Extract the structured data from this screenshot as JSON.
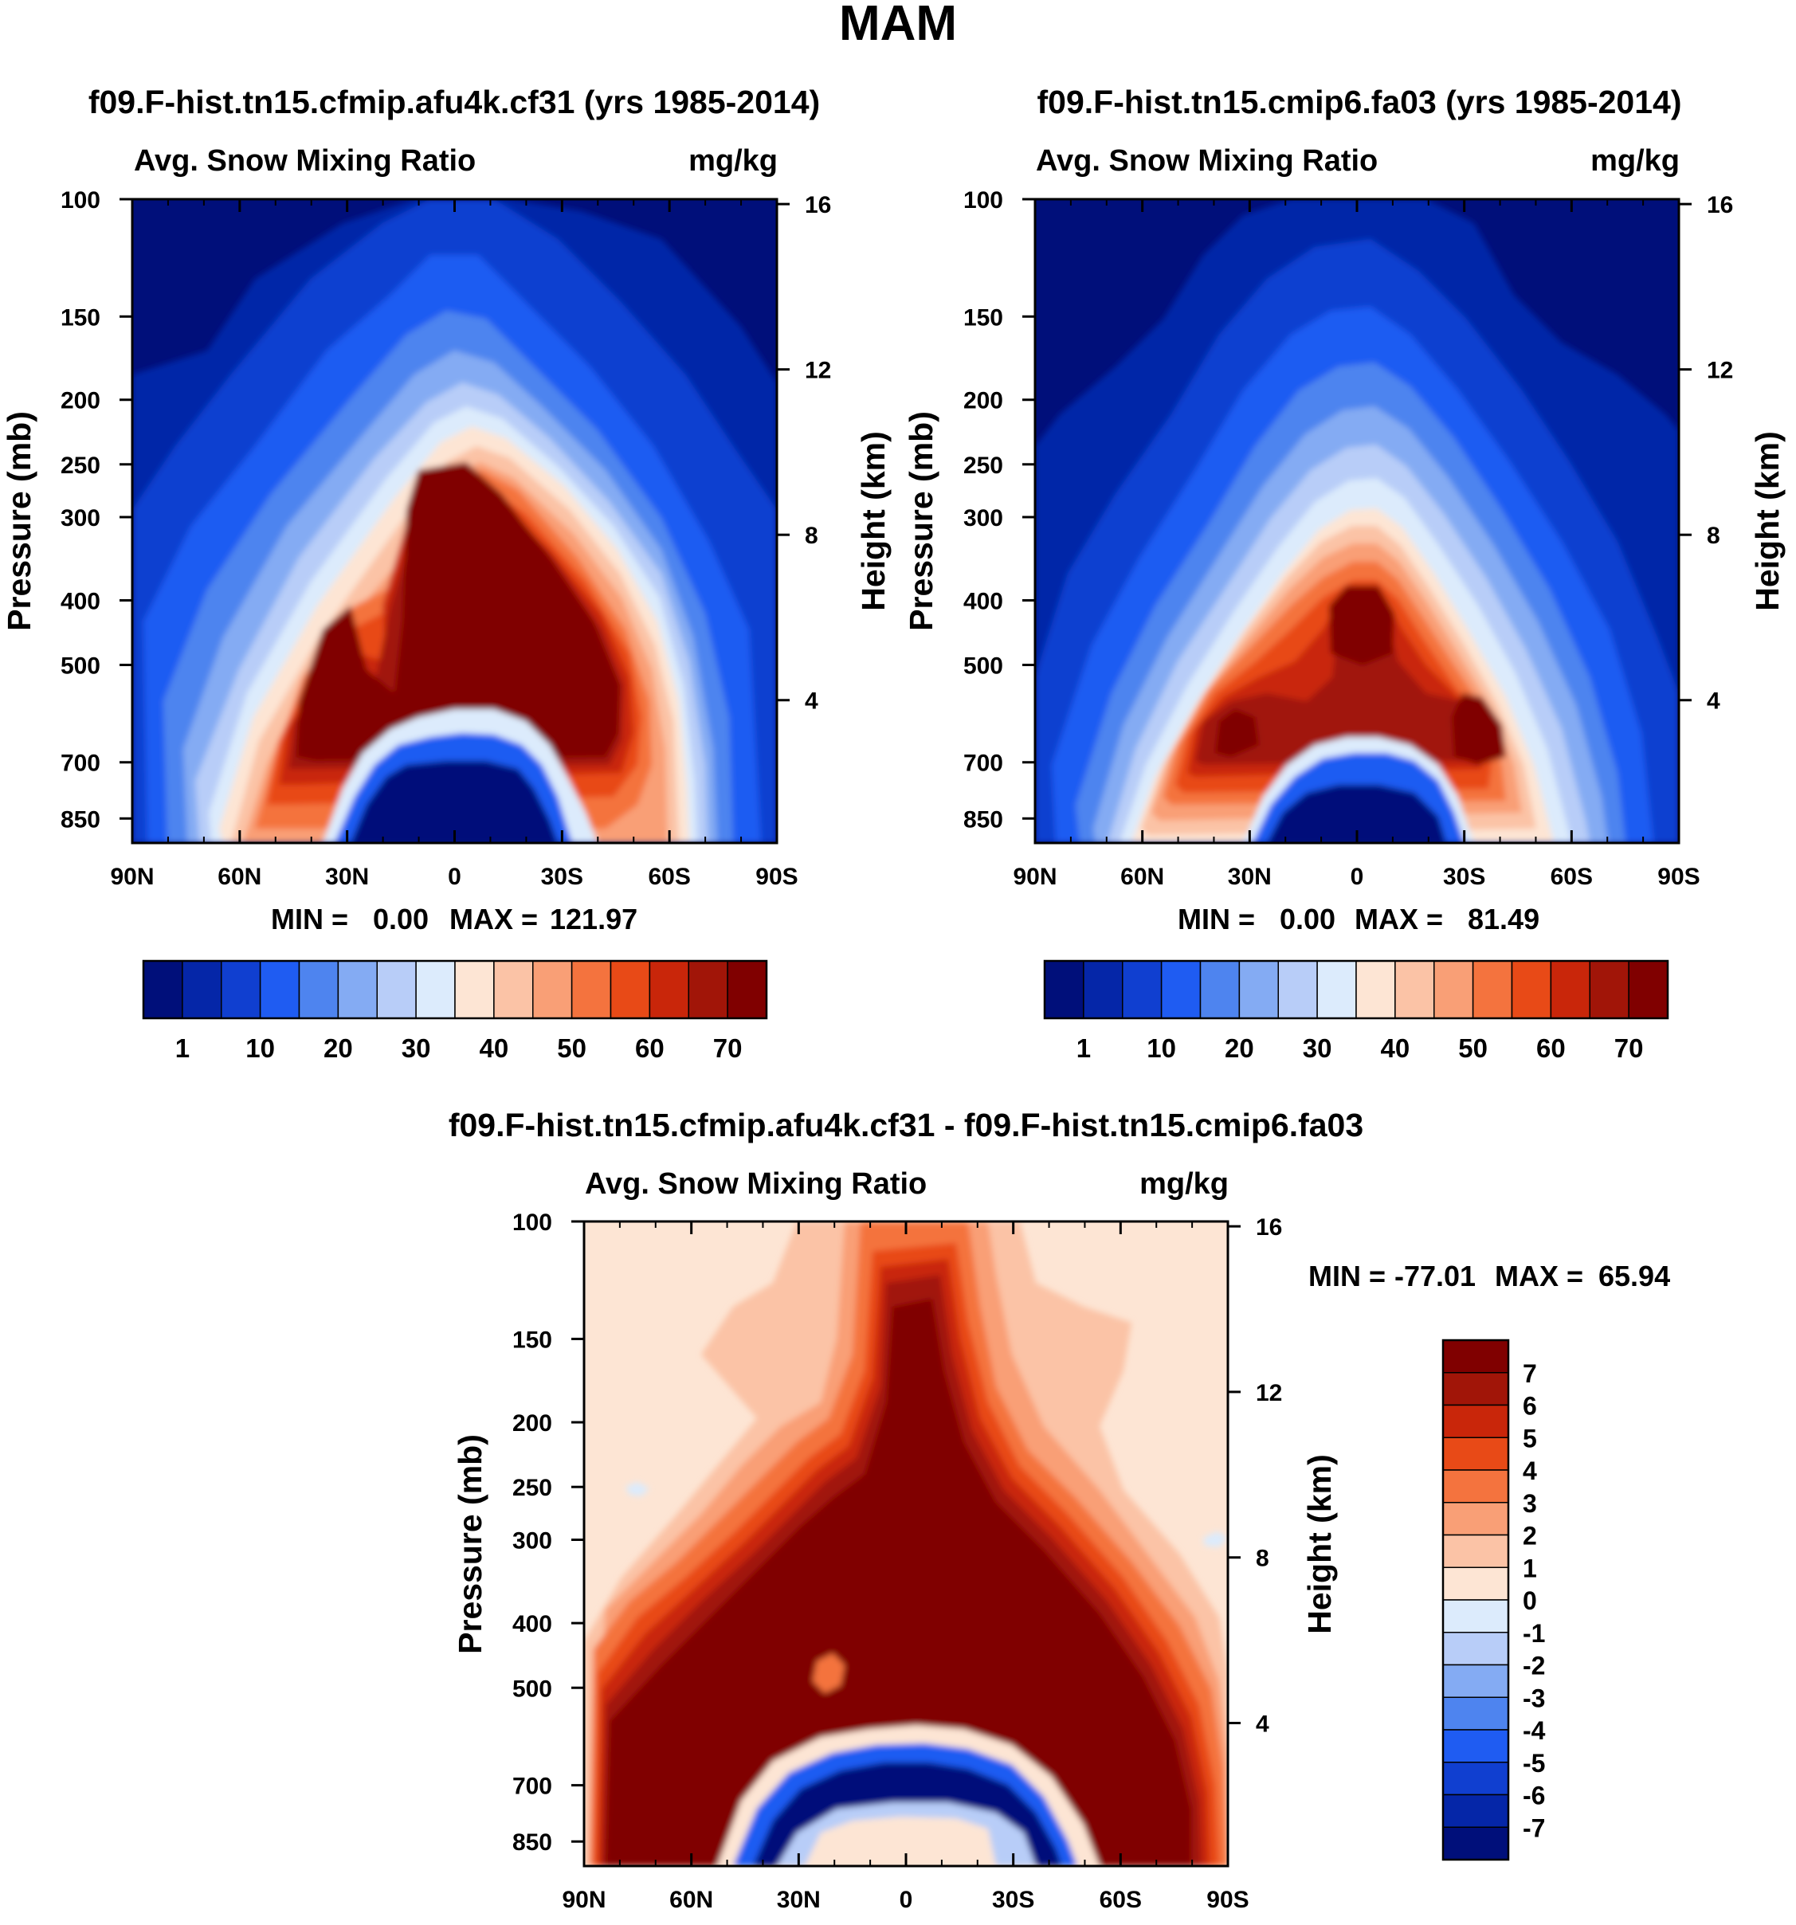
{
  "figure_title": "MAM",
  "colors": {
    "abs_scale": [
      "#000f7a",
      "#0526a8",
      "#103fd0",
      "#1f5cf2",
      "#4e84ef",
      "#84abf3",
      "#b8cdf8",
      "#dcebfc",
      "#fde5d4",
      "#fbc3a6",
      "#f99f76",
      "#f4733e",
      "#e84a17",
      "#c9260a",
      "#a11508",
      "#800000"
    ],
    "diff_scale": [
      "#000f7a",
      "#0526a8",
      "#103fd0",
      "#1f5cf2",
      "#4e84ef",
      "#84abf3",
      "#b8cdf8",
      "#dcebfc",
      "#fde5d4",
      "#fbc3a6",
      "#f99f76",
      "#f4733e",
      "#e84a17",
      "#c9260a",
      "#a11508",
      "#800000"
    ]
  },
  "chart_data": [
    {
      "type": "heatmap",
      "id": "panel-1",
      "title": "f09.F-hist.tn15.cfmip.afu4k.cf31 (yrs 1985-2014)",
      "left_label": "Avg. Snow Mixing Ratio",
      "right_label": "mg/kg",
      "ylabel": "Pressure (mb)",
      "ylabel_right": "Height (km)",
      "x_ticks": [
        "90N",
        "60N",
        "30N",
        "0",
        "30S",
        "60S",
        "90S"
      ],
      "p_ticks": [
        "100",
        "150",
        "200",
        "250",
        "300",
        "400",
        "500",
        "700",
        "850"
      ],
      "h_ticks": [
        "16",
        "12",
        "8",
        "4"
      ],
      "stats": {
        "min_label": "MIN =",
        "min": "0.00",
        "max_label": "MAX =",
        "max": "121.97"
      },
      "colorbar_labels": [
        "1",
        "10",
        "20",
        "30",
        "40",
        "50",
        "60",
        "70"
      ],
      "field": "abs_a"
    },
    {
      "type": "heatmap",
      "id": "panel-2",
      "title": "f09.F-hist.tn15.cmip6.fa03 (yrs 1985-2014)",
      "left_label": "Avg. Snow Mixing Ratio",
      "right_label": "mg/kg",
      "ylabel": "Pressure (mb)",
      "ylabel_right": "Height (km)",
      "x_ticks": [
        "90N",
        "60N",
        "30N",
        "0",
        "30S",
        "60S",
        "90S"
      ],
      "p_ticks": [
        "100",
        "150",
        "200",
        "250",
        "300",
        "400",
        "500",
        "700",
        "850"
      ],
      "h_ticks": [
        "16",
        "12",
        "8",
        "4"
      ],
      "stats": {
        "min_label": "MIN =",
        "min": "0.00",
        "max_label": "MAX =",
        "max": "81.49"
      },
      "colorbar_labels": [
        "1",
        "10",
        "20",
        "30",
        "40",
        "50",
        "60",
        "70"
      ],
      "field": "abs_b"
    },
    {
      "type": "heatmap",
      "id": "panel-diff",
      "title": "f09.F-hist.tn15.cfmip.afu4k.cf31 - f09.F-hist.tn15.cmip6.fa03",
      "left_label": "Avg. Snow Mixing Ratio",
      "right_label": "mg/kg",
      "ylabel": "Pressure (mb)",
      "ylabel_right": "Height (km)",
      "x_ticks": [
        "90N",
        "60N",
        "30N",
        "0",
        "30S",
        "60S",
        "90S"
      ],
      "p_ticks": [
        "100",
        "150",
        "200",
        "250",
        "300",
        "400",
        "500",
        "700",
        "850"
      ],
      "h_ticks": [
        "16",
        "12",
        "8",
        "4"
      ],
      "stats": {
        "min_label": "MIN =",
        "min": "-77.01",
        "max_label": "MAX =",
        "max": "65.94"
      },
      "colorbar_labels": [
        "7",
        "6",
        "5",
        "4",
        "3",
        "2",
        "1",
        "0",
        "-1",
        "-2",
        "-3",
        "-4",
        "-5",
        "-6",
        "-7"
      ],
      "field": "diff"
    }
  ]
}
